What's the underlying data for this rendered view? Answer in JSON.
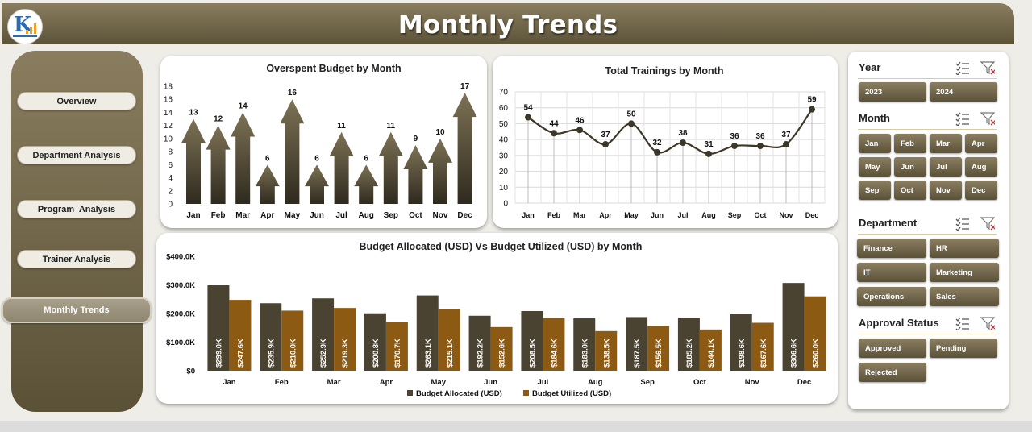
{
  "header": {
    "title": "Monthly Trends"
  },
  "nav": [
    {
      "label": "Overview",
      "active": false
    },
    {
      "label": "Department Analysis",
      "active": false
    },
    {
      "label": "Program  Analysis",
      "active": false
    },
    {
      "label": "Trainer Analysis",
      "active": false
    },
    {
      "label": "Monthly Trends",
      "active": true
    }
  ],
  "colors": {
    "bar_dark": "#4a4332",
    "bar_orange": "#8c5a12",
    "accent": "#7a6f53"
  },
  "chart_data": [
    {
      "type": "bar",
      "title": "Overspent Budget by Month",
      "categories": [
        "Jan",
        "Feb",
        "Mar",
        "Apr",
        "May",
        "Jun",
        "Jul",
        "Aug",
        "Sep",
        "Oct",
        "Nov",
        "Dec"
      ],
      "values": [
        13,
        12,
        14,
        6,
        16,
        6,
        11,
        6,
        11,
        9,
        10,
        17
      ],
      "ylim": [
        0,
        18
      ],
      "yticks": [
        "0",
        "2",
        "4",
        "6",
        "8",
        "10",
        "12",
        "14",
        "16",
        "18"
      ],
      "grid": false
    },
    {
      "type": "line",
      "title": "Total Trainings by Month",
      "categories": [
        "Jan",
        "Feb",
        "Mar",
        "Apr",
        "May",
        "Jun",
        "Jul",
        "Aug",
        "Sep",
        "Oct",
        "Nov",
        "Dec"
      ],
      "values": [
        54,
        44,
        46,
        37,
        50,
        32,
        38,
        31,
        36,
        36,
        37,
        59
      ],
      "ylim": [
        0,
        70
      ],
      "yticks": [
        "0",
        "10",
        "20",
        "30",
        "40",
        "50",
        "60",
        "70"
      ],
      "grid": true
    },
    {
      "type": "bar",
      "title": "Budget Allocated (USD) Vs Budget Utilized (USD) by Month",
      "categories": [
        "Jan",
        "Feb",
        "Mar",
        "Apr",
        "May",
        "Jun",
        "Jul",
        "Aug",
        "Sep",
        "Oct",
        "Nov",
        "Dec"
      ],
      "series": [
        {
          "name": "Budget Allocated (USD)",
          "values": [
            299.0,
            235.9,
            252.9,
            200.8,
            263.1,
            192.2,
            208.5,
            183.0,
            187.5,
            185.2,
            198.6,
            306.6
          ],
          "labels": [
            "$299.0K",
            "$235.9K",
            "$252.9K",
            "$200.8K",
            "$263.1K",
            "$192.2K",
            "$208.5K",
            "$183.0K",
            "$187.5K",
            "$185.2K",
            "$198.6K",
            "$306.6K"
          ]
        },
        {
          "name": "Budget Utilized (USD)",
          "values": [
            247.6,
            210.0,
            219.3,
            170.7,
            215.1,
            152.6,
            184.6,
            138.5,
            156.5,
            144.1,
            167.6,
            260.0
          ],
          "labels": [
            "$247.6K",
            "$210.0K",
            "$219.3K",
            "$170.7K",
            "$215.1K",
            "$152.6K",
            "$184.6K",
            "$138.5K",
            "$156.5K",
            "$144.1K",
            "$167.6K",
            "$260.0K"
          ]
        }
      ],
      "ylim": [
        0,
        400
      ],
      "yticks": [
        "$0",
        "$100.0K",
        "$200.0K",
        "$300.0K",
        "$400.0K"
      ],
      "legend": "bottom",
      "grid": false
    }
  ],
  "slicers": {
    "year": {
      "title": "Year",
      "items": [
        "2023",
        "2024"
      ]
    },
    "month": {
      "title": "Month",
      "items": [
        "Jan",
        "Feb",
        "Mar",
        "Apr",
        "May",
        "Jun",
        "Jul",
        "Aug",
        "Sep",
        "Oct",
        "Nov",
        "Dec"
      ]
    },
    "department": {
      "title": "Department",
      "items": [
        "Finance",
        "HR",
        "IT",
        "Marketing",
        "Operations",
        "Sales"
      ]
    },
    "approval": {
      "title": "Approval Status",
      "items": [
        "Approved",
        "Pending",
        "Rejected"
      ]
    }
  }
}
